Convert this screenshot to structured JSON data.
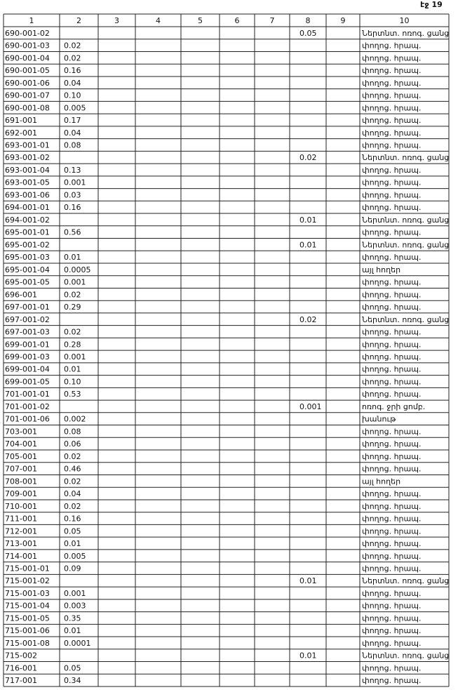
{
  "header": {
    "page": "էջ 19"
  },
  "table": {
    "columns": [
      "1",
      "2",
      "3",
      "4",
      "5",
      "6",
      "7",
      "8",
      "9",
      "10"
    ],
    "rows": [
      {
        "c1": "690-001-02",
        "c8": "0.05",
        "c10": "Ներտնտ. ոռոգ. ցանց"
      },
      {
        "c1": "690-001-03",
        "c2": "0.02",
        "c10": "փողոց. հրապ."
      },
      {
        "c1": "690-001-04",
        "c2": "0.02",
        "c10": "փողոց. հրապ."
      },
      {
        "c1": "690-001-05",
        "c2": "0.16",
        "c10": "փողոց. հրապ."
      },
      {
        "c1": "690-001-06",
        "c2": "0.04",
        "c10": "փողոց. հրապ."
      },
      {
        "c1": "690-001-07",
        "c2": "0.10",
        "c10": "փողոց. հրապ."
      },
      {
        "c1": "690-001-08",
        "c2": "0.005",
        "c10": "փողոց. հրապ."
      },
      {
        "c1": "691-001",
        "c2": "0.17",
        "c10": "փողոց. հրապ."
      },
      {
        "c1": "692-001",
        "c2": "0.04",
        "c10": "փողոց. հրապ."
      },
      {
        "c1": "693-001-01",
        "c2": "0.08",
        "c10": "փողոց. հրապ."
      },
      {
        "c1": "693-001-02",
        "c8": "0.02",
        "c10": "Ներտնտ. ոռոգ. ցանց"
      },
      {
        "c1": "693-001-04",
        "c2": "0.13",
        "c10": "փողոց. հրապ."
      },
      {
        "c1": "693-001-05",
        "c2": "0.001",
        "c10": "փողոց. հրապ."
      },
      {
        "c1": "693-001-06",
        "c2": "0.03",
        "c10": "փողոց. հրապ."
      },
      {
        "c1": "694-001-01",
        "c2": "0.16",
        "c10": "փողոց. հրապ."
      },
      {
        "c1": "694-001-02",
        "c8": "0.01",
        "c10": "Ներտնտ. ոռոգ. ցանց"
      },
      {
        "c1": "695-001-01",
        "c2": "0.56",
        "c10": "փողոց. հրապ."
      },
      {
        "c1": "695-001-02",
        "c8": "0.01",
        "c10": "Ներտնտ. ոռոգ. ցանց"
      },
      {
        "c1": "695-001-03",
        "c2": "0.01",
        "c10": "փողոց. հրապ."
      },
      {
        "c1": "695-001-04",
        "c2": "0.0005",
        "c10": "այլ հողեր"
      },
      {
        "c1": "695-001-05",
        "c2": "0.001",
        "c10": "փողոց. հրապ."
      },
      {
        "c1": "696-001",
        "c2": "0.02",
        "c10": "փողոց. հրապ."
      },
      {
        "c1": "697-001-01",
        "c2": "0.29",
        "c10": "փողոց. հրապ."
      },
      {
        "c1": "697-001-02",
        "c8": "0.02",
        "c10": "Ներտնտ. ոռոգ. ցանց"
      },
      {
        "c1": "697-001-03",
        "c2": "0.02",
        "c10": "փողոց. հրապ."
      },
      {
        "c1": "699-001-01",
        "c2": "0.28",
        "c10": "փողոց. հրապ."
      },
      {
        "c1": "699-001-03",
        "c2": "0.001",
        "c10": "փողոց. հրապ."
      },
      {
        "c1": "699-001-04",
        "c2": "0.01",
        "c10": "փողոց. հրապ."
      },
      {
        "c1": "699-001-05",
        "c2": "0.10",
        "c10": "փողոց. հրապ."
      },
      {
        "c1": "701-001-01",
        "c2": "0.53",
        "c10": "փողոց. հրապ."
      },
      {
        "c1": "701-001-02",
        "c8": "0.001",
        "c10": "ոռոգ. ջրի ցոմբ."
      },
      {
        "c1": "701-001-06",
        "c2": "0.002",
        "c10": "խանութ"
      },
      {
        "c1": "703-001",
        "c2": "0.08",
        "c10": "փողոց. հրապ."
      },
      {
        "c1": "704-001",
        "c2": "0.06",
        "c10": "փողոց. հրապ."
      },
      {
        "c1": "705-001",
        "c2": "0.02",
        "c10": "փողոց. հրապ."
      },
      {
        "c1": "707-001",
        "c2": "0.46",
        "c10": "փողոց. հրապ."
      },
      {
        "c1": "708-001",
        "c2": "0.02",
        "c10": "այլ հողեր"
      },
      {
        "c1": "709-001",
        "c2": "0.04",
        "c10": "փողոց. հրապ."
      },
      {
        "c1": "710-001",
        "c2": "0.02",
        "c10": "փողոց. հրապ."
      },
      {
        "c1": "711-001",
        "c2": "0.16",
        "c10": "փողոց. հրապ."
      },
      {
        "c1": "712-001",
        "c2": "0.05",
        "c10": "փողոց. հրապ."
      },
      {
        "c1": "713-001",
        "c2": "0.01",
        "c10": "փողոց. հրապ."
      },
      {
        "c1": "714-001",
        "c2": "0.005",
        "c10": "փողոց. հրապ."
      },
      {
        "c1": "715-001-01",
        "c2": "0.09",
        "c10": "փողոց. հրապ."
      },
      {
        "c1": "715-001-02",
        "c8": "0.01",
        "c10": "Ներտնտ. ոռոգ. ցանց"
      },
      {
        "c1": "715-001-03",
        "c2": "0.001",
        "c10": "փողոց. հրապ."
      },
      {
        "c1": "715-001-04",
        "c2": "0.003",
        "c10": "փողոց. հրապ."
      },
      {
        "c1": "715-001-05",
        "c2": "0.35",
        "c10": "փողոց. հրապ."
      },
      {
        "c1": "715-001-06",
        "c2": "0.01",
        "c10": "փողոց. հրապ."
      },
      {
        "c1": "715-001-08",
        "c2": "0.0001",
        "c10": "փողոց. հրապ."
      },
      {
        "c1": "715-002",
        "c8": "0.01",
        "c10": "Ներտնտ. ոռոգ. ցանց"
      },
      {
        "c1": "716-001",
        "c2": "0.05",
        "c10": "փողոց. հրապ."
      },
      {
        "c1": "717-001",
        "c2": "0.34",
        "c10": "փողոց. հրապ."
      }
    ]
  }
}
